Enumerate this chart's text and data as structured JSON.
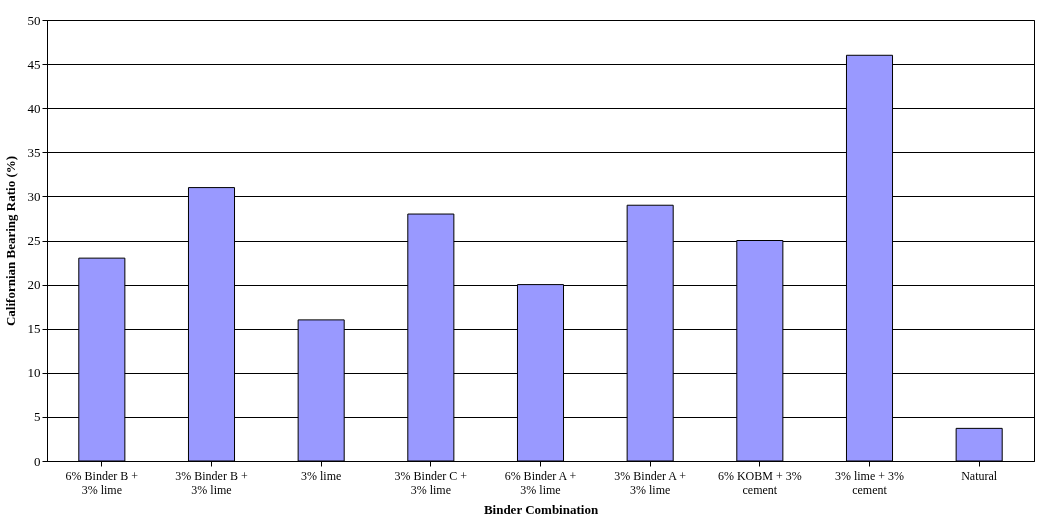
{
  "chart_data": {
    "type": "bar",
    "xlabel": "Binder Combination",
    "ylabel": "Californian Bearing Ratio (%)",
    "categories": [
      "6% Binder B + 3% lime",
      "3% Binder B + 3% lime",
      "3% lime",
      "3% Binder C + 3% lime",
      "6% Binder A + 3% lime",
      "3% Binder A + 3% lime",
      "6% KOBM + 3% cement",
      "3% lime + 3% cement",
      "Natural"
    ],
    "values": [
      23,
      31,
      16,
      28,
      20,
      29,
      25,
      46,
      3.7
    ],
    "color": "#9999ff",
    "ylim": [
      0,
      50
    ],
    "yticks": [
      0,
      5,
      10,
      15,
      20,
      25,
      30,
      35,
      40,
      45,
      50
    ],
    "grid": "y"
  }
}
